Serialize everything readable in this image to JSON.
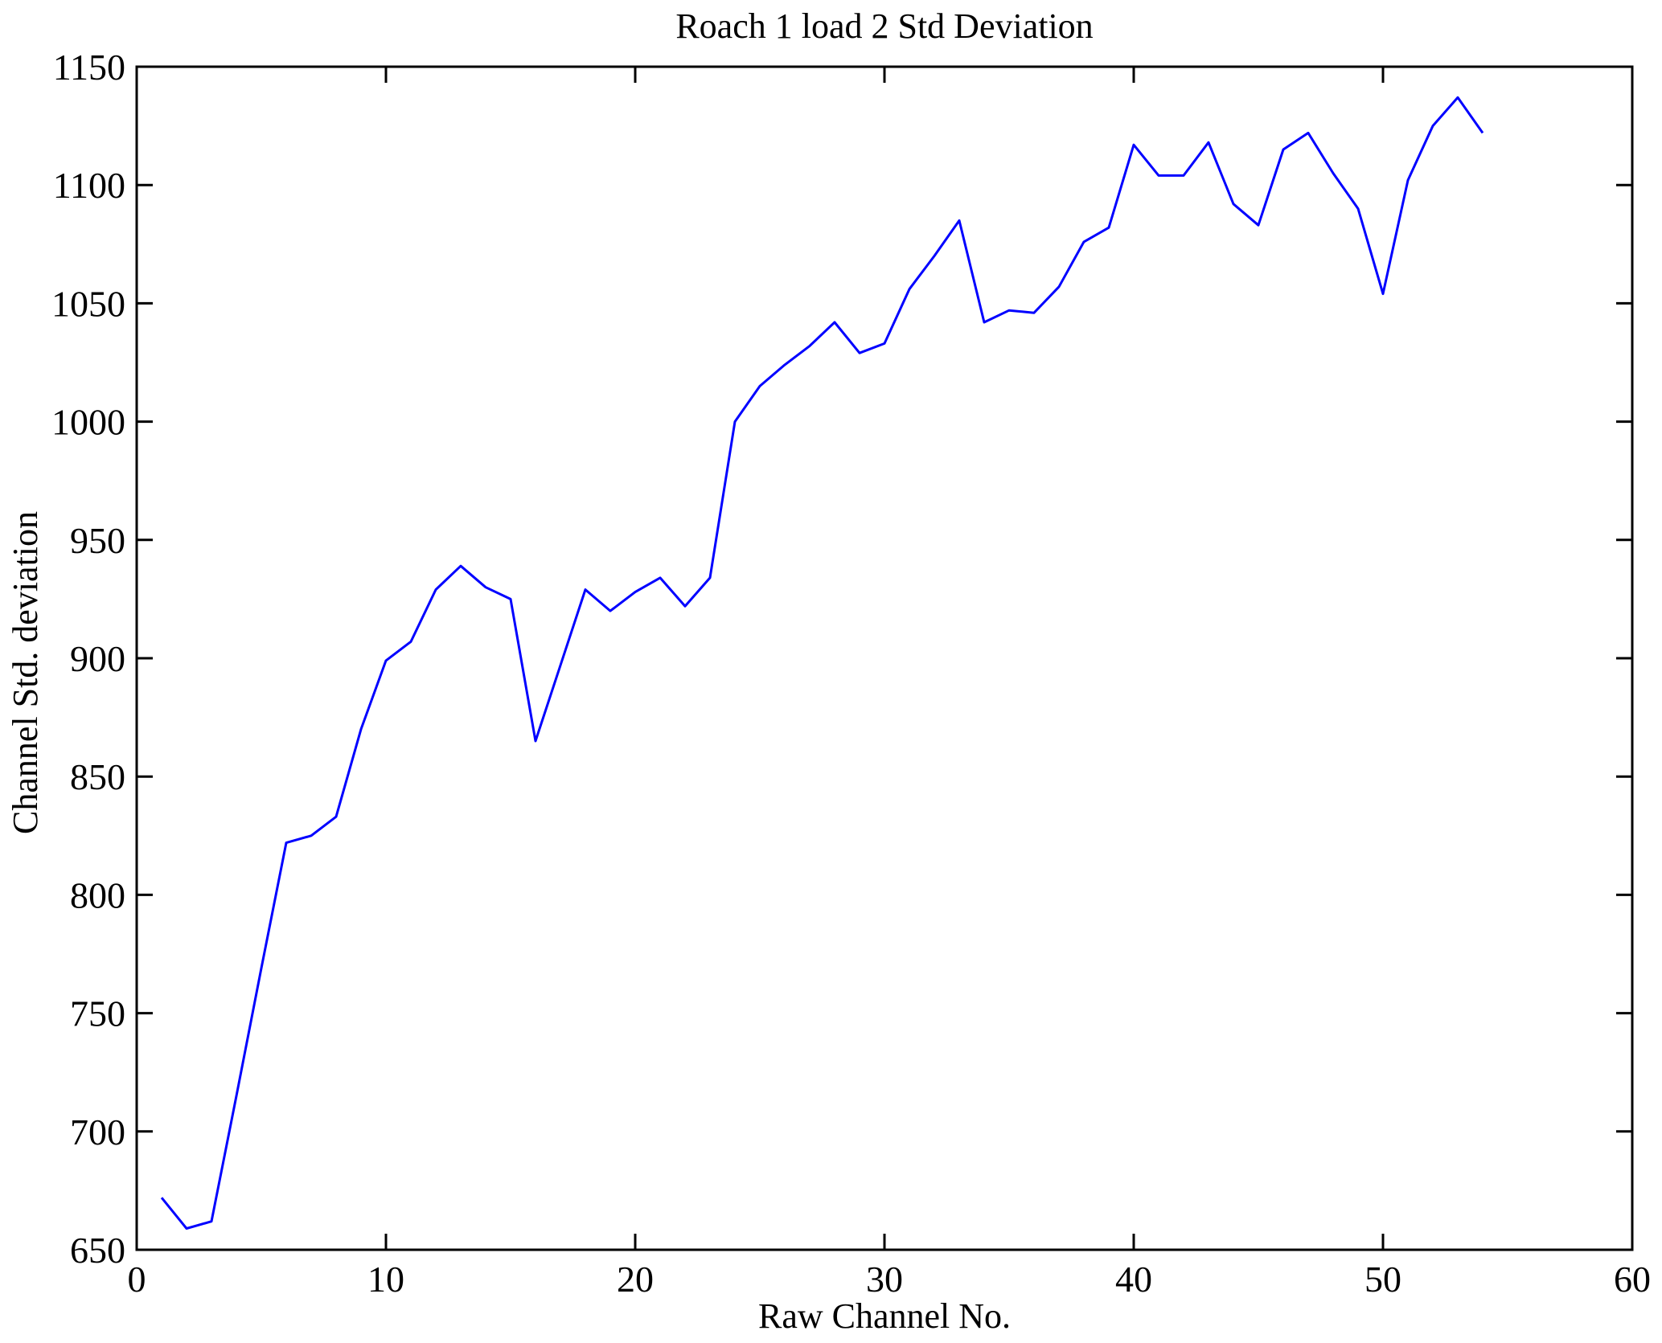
{
  "figure": {
    "background": "#ffffff",
    "axis_color": "#000000",
    "text_color": "#000000"
  },
  "chart_data": {
    "type": "line",
    "title": "Roach 1 load 2 Std Deviation",
    "xlabel": "Raw Channel No.",
    "ylabel": "Channel Std. deviation",
    "x": [
      1,
      2,
      3,
      4,
      5,
      6,
      7,
      8,
      9,
      10,
      11,
      12,
      13,
      14,
      15,
      16,
      17,
      18,
      19,
      20,
      21,
      22,
      23,
      24,
      25,
      26,
      27,
      28,
      29,
      30,
      31,
      32,
      33,
      34,
      35,
      36,
      37,
      38,
      39,
      40,
      41,
      42,
      43,
      44,
      45,
      46,
      47,
      48,
      49,
      50,
      51,
      52,
      53,
      54
    ],
    "values": [
      672,
      659,
      662,
      715,
      769,
      822,
      825,
      833,
      870,
      899,
      907,
      929,
      939,
      930,
      925,
      865,
      897,
      929,
      920,
      928,
      934,
      922,
      934,
      1000,
      1015,
      1024,
      1032,
      1042,
      1029,
      1033,
      1056,
      1070,
      1085,
      1042,
      1047,
      1046,
      1057,
      1076,
      1082,
      1117,
      1104,
      1104,
      1118,
      1092,
      1083,
      1115,
      1122,
      1105,
      1090,
      1054,
      1102,
      1125,
      1137,
      1122
    ],
    "xlim": [
      0,
      60
    ],
    "ylim": [
      650,
      1150
    ],
    "xticks": [
      0,
      10,
      20,
      30,
      40,
      50,
      60
    ],
    "yticks": [
      650,
      700,
      750,
      800,
      850,
      900,
      950,
      1000,
      1050,
      1100,
      1150
    ],
    "line_color": "#0000FF",
    "grid": false,
    "legend_position": "none"
  }
}
